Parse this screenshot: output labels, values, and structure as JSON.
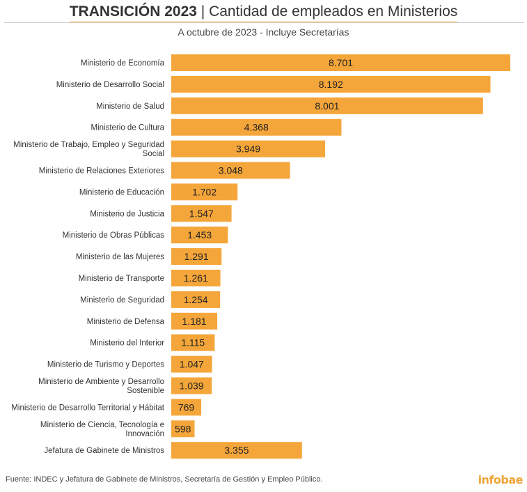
{
  "header": {
    "title_bold": "TRANSICIÓN 2023",
    "title_sep": " | ",
    "title_rest": "Cantidad de empleados en Ministerios",
    "subtitle": "A octubre de 2023 - Incluye Secretarías"
  },
  "footer": {
    "source": "Fuente: INDEC y Jefatura de Gabinete de Ministros, Secretaría de Gestión y Empleo Público.",
    "brand": "infobae"
  },
  "colors": {
    "bar": "#f5a63a",
    "accent": "#f0a53a",
    "text": "#333333"
  },
  "chart_data": {
    "type": "bar",
    "orientation": "horizontal",
    "title": "TRANSICIÓN 2023 | Cantidad de empleados en Ministerios",
    "subtitle": "A octubre de 2023 - Incluye Secretarías",
    "categories": [
      [
        "Ministerio de Economía"
      ],
      [
        "Ministerio de Desarrollo Social"
      ],
      [
        "Ministerio de Salud"
      ],
      [
        "Ministerio de Cultura"
      ],
      [
        "Ministerio de Trabajo, Empleo y Seguridad",
        "Social"
      ],
      [
        "Ministerio de Relaciones Exteriores"
      ],
      [
        "Ministerio de Educación"
      ],
      [
        "Ministerio de Justicia"
      ],
      [
        "Ministerio de Obras Públicas"
      ],
      [
        "Ministerio de las Mujeres"
      ],
      [
        "Ministerio de Transporte"
      ],
      [
        "Ministerio de Seguridad"
      ],
      [
        "Ministerio de Defensa"
      ],
      [
        "Ministerio del Interior"
      ],
      [
        "Ministerio de Turismo y Deportes"
      ],
      [
        "Ministerio de Ambiente y Desarrollo",
        "Sostenible"
      ],
      [
        "Ministerio de Desarrollo Territorial y Hábitat"
      ],
      [
        "Ministerio de Ciencia, Tecnología e",
        "Innovación"
      ],
      [
        "Jefatura de Gabinete de Ministros"
      ]
    ],
    "values": [
      8701,
      8192,
      8001,
      4368,
      3949,
      3048,
      1702,
      1547,
      1453,
      1291,
      1261,
      1254,
      1181,
      1115,
      1047,
      1039,
      769,
      598,
      3355
    ],
    "value_labels": [
      "8.701",
      "8.192",
      "8.001",
      "4.368",
      "3.949",
      "3.048",
      "1.702",
      "1.547",
      "1.453",
      "1.291",
      "1.261",
      "1.254",
      "1.181",
      "1.115",
      "1.047",
      "1.039",
      "769",
      "598",
      "3.355"
    ],
    "xlim": [
      0,
      8701
    ],
    "grid": false,
    "legend": "none"
  }
}
